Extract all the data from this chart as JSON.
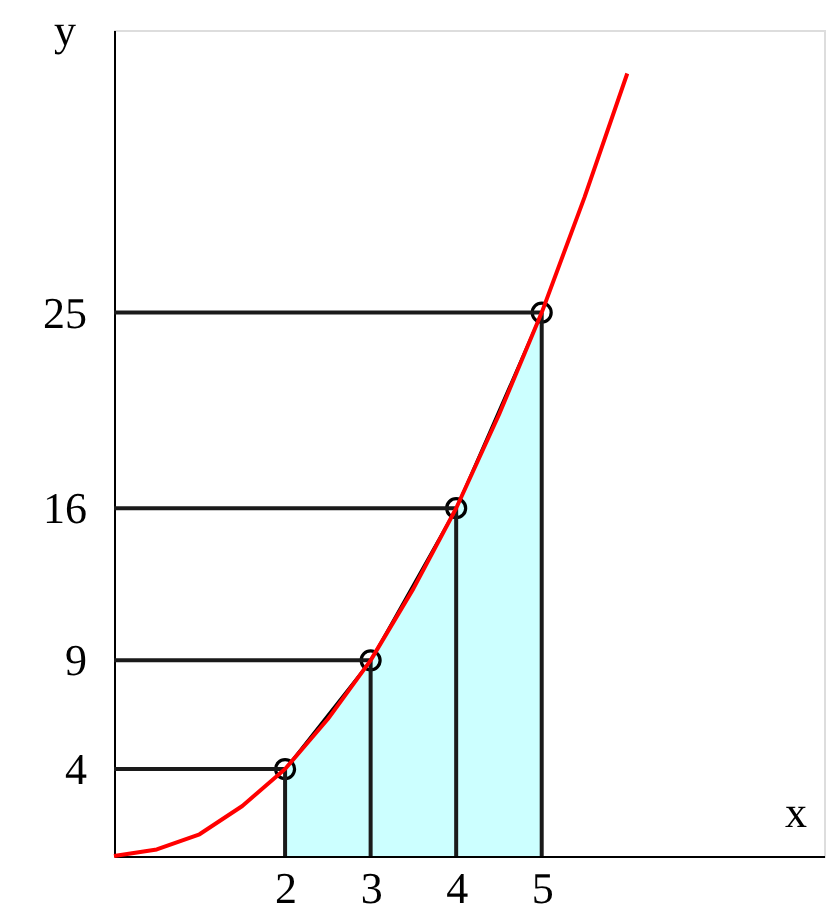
{
  "chart_data": {
    "type": "line",
    "xlabel": "x",
    "ylabel": "y",
    "xlim": [
      0,
      8.3
    ],
    "ylim": [
      0,
      38
    ],
    "xticks": [
      2,
      3,
      4,
      5
    ],
    "yticks": [
      4,
      9,
      16,
      25
    ],
    "grid": false,
    "series": [
      {
        "type": "area",
        "color": "#ccffff",
        "marker": "circle",
        "x": [
          2,
          3,
          4,
          5
        ],
        "values": [
          4,
          9,
          16,
          25
        ]
      },
      {
        "color": "#1a1a1a",
        "x": [
          0,
          2
        ],
        "values": [
          4,
          4
        ]
      },
      {
        "color": "#1a1a1a",
        "x": [
          0,
          3
        ],
        "values": [
          9,
          9
        ]
      },
      {
        "color": "#1a1a1a",
        "x": [
          0,
          4
        ],
        "values": [
          16,
          16
        ]
      },
      {
        "color": "#1a1a1a",
        "x": [
          0,
          5
        ],
        "values": [
          25,
          25
        ]
      },
      {
        "color": "#1a1a1a",
        "x": [
          2,
          2
        ],
        "values": [
          0,
          4
        ]
      },
      {
        "color": "#1a1a1a",
        "x": [
          3,
          3
        ],
        "values": [
          0,
          9
        ]
      },
      {
        "color": "#1a1a1a",
        "x": [
          4,
          4
        ],
        "values": [
          0,
          16
        ]
      },
      {
        "color": "#1a1a1a",
        "x": [
          5,
          5
        ],
        "values": [
          0,
          25
        ]
      },
      {
        "color": "#ff0000",
        "x": [
          0,
          0.5,
          1,
          1.5,
          2,
          2.5,
          3,
          3.5,
          4,
          4.5,
          5,
          5.5,
          6
        ],
        "values": [
          0,
          0.3,
          1,
          2.3,
          4,
          6.3,
          9,
          12.3,
          16,
          20.3,
          25,
          30.3,
          36
        ]
      }
    ]
  }
}
